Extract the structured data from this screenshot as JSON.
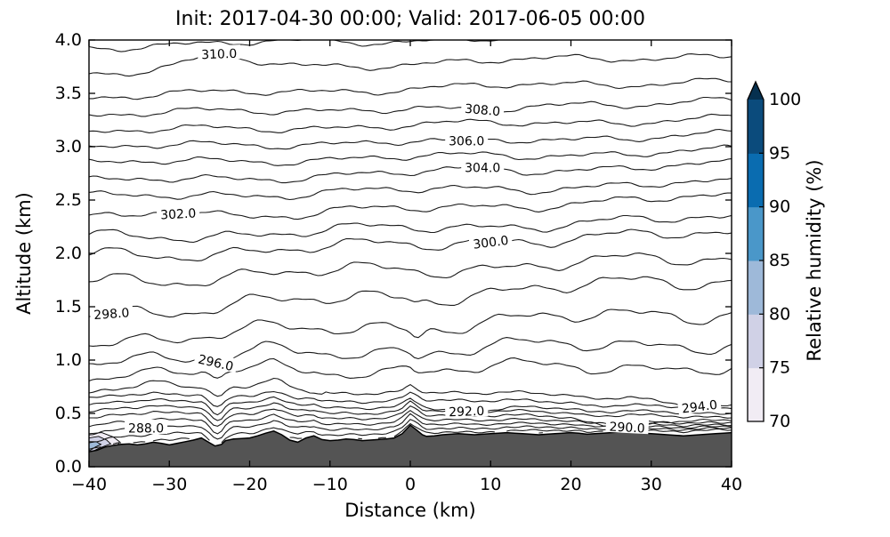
{
  "chart_data": {
    "type": "contour",
    "title": "Init: 2017-04-30 00:00; Valid: 2017-06-05 00:00",
    "xlabel": "Distance (km)",
    "ylabel": "Altitude (km)",
    "xlim": [
      -40,
      40
    ],
    "ylim": [
      0.0,
      4.0
    ],
    "grid": false,
    "x_ticks": [
      "−40",
      "−30",
      "−20",
      "−10",
      "0",
      "10",
      "20",
      "30",
      "40"
    ],
    "x_tick_values": [
      -40,
      -30,
      -20,
      -10,
      0,
      10,
      20,
      30,
      40
    ],
    "y_ticks": [
      "0.0",
      "0.5",
      "1.0",
      "1.5",
      "2.0",
      "2.5",
      "3.0",
      "3.5",
      "4.0"
    ],
    "y_tick_values": [
      0,
      0.5,
      1,
      1.5,
      2,
      2.5,
      3,
      3.5,
      4
    ],
    "contours": {
      "line_color": "#1a1a1a",
      "comment": "isolines of the contoured field; z_left / z_right are line altitudes (km) at x=-40 / x=+40",
      "levels": [
        {
          "value": 285,
          "z_left": 0.19,
          "z_right": 0.32
        },
        {
          "value": 286,
          "z_left": 0.25,
          "z_right": 0.335
        },
        {
          "value": 287,
          "z_left": 0.315,
          "z_right": 0.35
        },
        {
          "value": 288,
          "z_left": 0.39,
          "z_right": 0.365
        },
        {
          "value": 289,
          "z_left": 0.46,
          "z_right": 0.385
        },
        {
          "value": 290,
          "z_left": 0.53,
          "z_right": 0.41
        },
        {
          "value": 291,
          "z_left": 0.59,
          "z_right": 0.44
        },
        {
          "value": 292,
          "z_left": 0.65,
          "z_right": 0.475
        },
        {
          "value": 293,
          "z_left": 0.71,
          "z_right": 0.53
        },
        {
          "value": 294,
          "z_left": 0.79,
          "z_right": 0.6
        },
        {
          "value": 295,
          "z_left": 0.89,
          "z_right": 0.93
        },
        {
          "value": 296,
          "z_left": 1.03,
          "z_right": 1.16
        },
        {
          "value": 297,
          "z_left": 1.19,
          "z_right": 1.46
        },
        {
          "value": 298,
          "z_left": 1.44,
          "z_right": 1.76
        },
        {
          "value": 299,
          "z_left": 1.74,
          "z_right": 1.96
        },
        {
          "value": 300,
          "z_left": 1.97,
          "z_right": 2.19
        },
        {
          "value": 301,
          "z_left": 2.14,
          "z_right": 2.33
        },
        {
          "value": 302,
          "z_left": 2.3,
          "z_right": 2.53
        },
        {
          "value": 303,
          "z_left": 2.52,
          "z_right": 2.66
        },
        {
          "value": 304,
          "z_left": 2.67,
          "z_right": 2.83
        },
        {
          "value": 305,
          "z_left": 2.84,
          "z_right": 2.96
        },
        {
          "value": 306,
          "z_left": 2.99,
          "z_right": 3.11
        },
        {
          "value": 307,
          "z_left": 3.14,
          "z_right": 3.26
        },
        {
          "value": 308,
          "z_left": 3.3,
          "z_right": 3.43
        },
        {
          "value": 309,
          "z_left": 3.47,
          "z_right": 3.62
        },
        {
          "value": 310,
          "z_left": 3.7,
          "z_right": 3.86
        },
        {
          "value": 311,
          "z_left": 3.94,
          "z_right": 4.06
        }
      ],
      "labels": [
        {
          "text": "310.0",
          "x": -23.8,
          "z": 3.875,
          "rot": -2
        },
        {
          "text": "308.0",
          "x": 9.0,
          "z": 3.35,
          "rot": 5
        },
        {
          "text": "306.0",
          "x": 7.0,
          "z": 3.06,
          "rot": 0
        },
        {
          "text": "304.0",
          "x": 9.0,
          "z": 2.81,
          "rot": 0
        },
        {
          "text": "302.0",
          "x": -28.9,
          "z": 2.375,
          "rot": -3
        },
        {
          "text": "300.0",
          "x": 10.0,
          "z": 2.11,
          "rot": -7
        },
        {
          "text": "298.0",
          "x": -37.2,
          "z": 1.44,
          "rot": -4
        },
        {
          "text": "296.0",
          "x": -24.2,
          "z": 0.98,
          "rot": 13
        },
        {
          "text": "294.0",
          "x": 36.0,
          "z": 0.57,
          "rot": -7
        },
        {
          "text": "292.0",
          "x": 7.0,
          "z": 0.525,
          "rot": -2
        },
        {
          "text": "290.0",
          "x": 27.0,
          "z": 0.375,
          "rot": 3
        },
        {
          "text": "288.0",
          "x": -32.9,
          "z": 0.367,
          "rot": 0
        }
      ]
    },
    "terrain": {
      "color": "#545454",
      "edge_color": "#000000",
      "points": [
        [
          -40,
          0.14
        ],
        [
          -39,
          0.155
        ],
        [
          -38,
          0.185
        ],
        [
          -37,
          0.2
        ],
        [
          -36,
          0.21
        ],
        [
          -35,
          0.215
        ],
        [
          -34,
          0.205
        ],
        [
          -33,
          0.215
        ],
        [
          -32,
          0.23
        ],
        [
          -31,
          0.22
        ],
        [
          -30,
          0.205
        ],
        [
          -29,
          0.22
        ],
        [
          -28,
          0.235
        ],
        [
          -27,
          0.25
        ],
        [
          -26,
          0.27
        ],
        [
          -25,
          0.225
        ],
        [
          -24.3,
          0.195
        ],
        [
          -23.5,
          0.21
        ],
        [
          -23,
          0.245
        ],
        [
          -22,
          0.26
        ],
        [
          -21,
          0.265
        ],
        [
          -20,
          0.27
        ],
        [
          -19,
          0.29
        ],
        [
          -18,
          0.315
        ],
        [
          -17,
          0.335
        ],
        [
          -16,
          0.3
        ],
        [
          -15,
          0.25
        ],
        [
          -14,
          0.23
        ],
        [
          -13,
          0.27
        ],
        [
          -12,
          0.29
        ],
        [
          -11,
          0.255
        ],
        [
          -10,
          0.245
        ],
        [
          -9,
          0.25
        ],
        [
          -8,
          0.26
        ],
        [
          -7,
          0.255
        ],
        [
          -6,
          0.245
        ],
        [
          -5,
          0.25
        ],
        [
          -4,
          0.255
        ],
        [
          -3,
          0.26
        ],
        [
          -2,
          0.27
        ],
        [
          -1,
          0.31
        ],
        [
          0,
          0.39
        ],
        [
          0.7,
          0.35
        ],
        [
          1.5,
          0.3
        ],
        [
          2,
          0.285
        ],
        [
          3,
          0.29
        ],
        [
          4,
          0.3
        ],
        [
          5,
          0.305
        ],
        [
          6,
          0.31
        ],
        [
          7,
          0.305
        ],
        [
          8,
          0.3
        ],
        [
          9,
          0.305
        ],
        [
          10,
          0.31
        ],
        [
          11,
          0.315
        ],
        [
          12,
          0.32
        ],
        [
          13,
          0.315
        ],
        [
          14,
          0.31
        ],
        [
          15,
          0.305
        ],
        [
          16,
          0.3
        ],
        [
          17,
          0.305
        ],
        [
          18,
          0.31
        ],
        [
          19,
          0.315
        ],
        [
          20,
          0.32
        ],
        [
          21,
          0.315
        ],
        [
          22,
          0.305
        ],
        [
          23,
          0.31
        ],
        [
          24,
          0.315
        ],
        [
          25,
          0.32
        ],
        [
          26,
          0.325
        ],
        [
          27,
          0.33
        ],
        [
          28,
          0.325
        ],
        [
          29,
          0.315
        ],
        [
          30,
          0.31
        ],
        [
          31,
          0.305
        ],
        [
          32,
          0.3
        ],
        [
          33,
          0.295
        ],
        [
          34,
          0.29
        ],
        [
          35,
          0.295
        ],
        [
          36,
          0.3
        ],
        [
          37,
          0.305
        ],
        [
          38,
          0.31
        ],
        [
          39,
          0.315
        ],
        [
          40,
          0.32
        ]
      ]
    },
    "humidity_shading": {
      "comment": "small shaded high-RH pocket at lower-left of section",
      "patches": [
        {
          "color": "#f1ecf4",
          "points": [
            [
              -40,
              0.31
            ],
            [
              -38.4,
              0.32
            ],
            [
              -37,
              0.28
            ],
            [
              -36.2,
              0.235
            ],
            [
              -36.5,
              0.19
            ],
            [
              -37.6,
              0.18
            ],
            [
              -38.7,
              0.15
            ],
            [
              -39.6,
              0.122
            ],
            [
              -40,
              0.11
            ]
          ]
        },
        {
          "color": "#d0d1e6",
          "points": [
            [
              -40,
              0.27
            ],
            [
              -38.8,
              0.285
            ],
            [
              -37.8,
              0.25
            ],
            [
              -37.3,
              0.215
            ],
            [
              -38,
              0.195
            ],
            [
              -39,
              0.165
            ],
            [
              -39.7,
              0.135
            ],
            [
              -40,
              0.125
            ]
          ]
        },
        {
          "color": "#9eb9d9",
          "points": [
            [
              -40,
              0.225
            ],
            [
              -39.1,
              0.235
            ],
            [
              -38.5,
              0.21
            ],
            [
              -39.2,
              0.185
            ],
            [
              -39.8,
              0.155
            ],
            [
              -40,
              0.15
            ]
          ]
        }
      ]
    },
    "colorbar": {
      "label": "Relative humidity (%)",
      "range": [
        70,
        100
      ],
      "tick_labels": [
        "70",
        "75",
        "80",
        "85",
        "90",
        "95",
        "100"
      ],
      "tick_values": [
        70,
        75,
        80,
        85,
        90,
        95,
        100
      ],
      "segment_colors_bottom_to_top": [
        "#f1ecf4",
        "#d0d1e6",
        "#9eb9d9",
        "#4a97c9",
        "#0a6cb0",
        "#0b4b7c"
      ],
      "over_arrow_color": "#06304f",
      "outline_color": "#000000"
    }
  }
}
